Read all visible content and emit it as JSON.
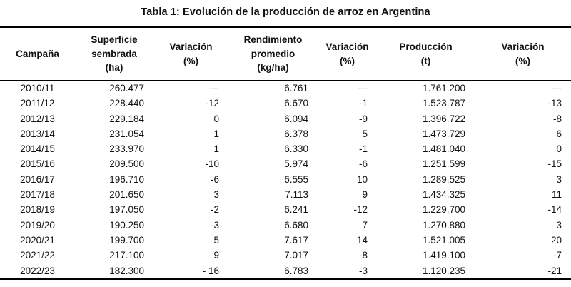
{
  "title": "Tabla 1: Evolución de la producción de arroz en Argentina",
  "table": {
    "columns": [
      {
        "name": "campana",
        "label": "Campaña",
        "align": "center"
      },
      {
        "name": "superficie-sembrada",
        "label": "Superficie\nsembrada\n(ha)",
        "align": "right"
      },
      {
        "name": "variacion-superficie",
        "label": "Variación\n(%)",
        "align": "right"
      },
      {
        "name": "rendimiento-promedio",
        "label": "Rendimiento\npromedio\n(kg/ha)",
        "align": "right"
      },
      {
        "name": "variacion-rendimiento",
        "label": "Variación\n(%)",
        "align": "right"
      },
      {
        "name": "produccion",
        "label": "Producción\n(t)",
        "align": "right"
      },
      {
        "name": "variacion-produccion",
        "label": "Variación\n(%)",
        "align": "right"
      }
    ],
    "rows": [
      [
        "2010/11",
        "260.477",
        "---",
        "6.761",
        "---",
        "1.761.200",
        "---"
      ],
      [
        "2011/12",
        "228.440",
        "-12",
        "6.670",
        "-1",
        "1.523.787",
        "-13"
      ],
      [
        "2012/13",
        "229.184",
        "0",
        "6.094",
        "-9",
        "1.396.722",
        "-8"
      ],
      [
        "2013/14",
        "231.054",
        "1",
        "6.378",
        "5",
        "1.473.729",
        "6"
      ],
      [
        "2014/15",
        "233.970",
        "1",
        "6.330",
        "-1",
        "1.481.040",
        "0"
      ],
      [
        "2015/16",
        "209.500",
        "-10",
        "5.974",
        "-6",
        "1.251.599",
        "-15"
      ],
      [
        "2016/17",
        "196.710",
        "-6",
        "6.555",
        "10",
        "1.289.525",
        "3"
      ],
      [
        "2017/18",
        "201.650",
        "3",
        "7.113",
        "9",
        "1.434.325",
        "11"
      ],
      [
        "2018/19",
        "197.050",
        "-2",
        "6.241",
        "-12",
        "1.229.700",
        "-14"
      ],
      [
        "2019/20",
        "190.250",
        "-3",
        "6.680",
        "7",
        "1.270.880",
        "3"
      ],
      [
        "2020/21",
        "199.700",
        "5",
        "7.617",
        "14",
        "1.521.005",
        "20"
      ],
      [
        "2021/22",
        "217.100",
        "9",
        "7.017",
        "-8",
        "1.419.100",
        "-7"
      ],
      [
        "2022/23",
        "182.300",
        "- 16",
        "6.783",
        "-3",
        "1.120.235",
        "-21"
      ]
    ]
  }
}
